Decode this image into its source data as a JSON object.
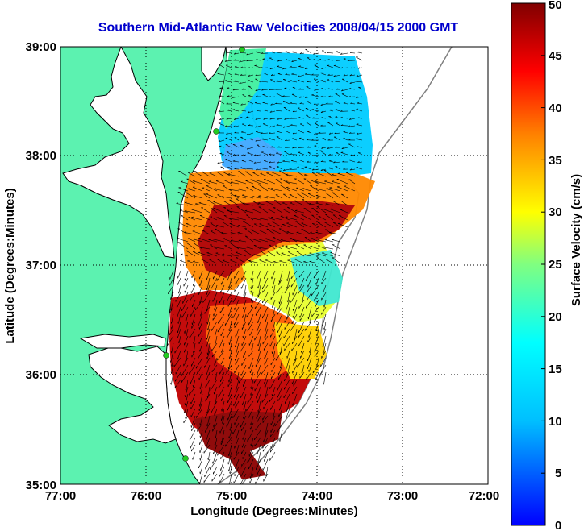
{
  "title": "Southern Mid-Atlantic Raw Velocities 2008/04/15 2000 GMT",
  "x_axis": {
    "label": "Longitude (Degrees:Minutes)",
    "ticks": [
      "77:00",
      "76:00",
      "75:00",
      "74:00",
      "73:00",
      "72:00"
    ]
  },
  "y_axis": {
    "label": "Latitude (Degrees:Minutes)",
    "ticks": [
      "39:00",
      "38:00",
      "37:00",
      "36:00",
      "35:00"
    ]
  },
  "colorbar": {
    "label": "Surface Velocity (cm/s)",
    "ticks": [
      "50",
      "45",
      "40",
      "35",
      "30",
      "25",
      "20",
      "15",
      "10",
      "5",
      "0"
    ],
    "range": [
      0,
      50
    ],
    "colormap": "jet"
  },
  "map": {
    "extent_lon": [
      -77,
      -72
    ],
    "extent_lat": [
      35,
      39
    ],
    "grid": true,
    "land_color": "#5cf2b0",
    "water_color": "#ffffff",
    "coast_color": "#000000",
    "bathymetry_color": "#808080",
    "station_color": "#22cc22"
  },
  "stations": [
    {
      "lon": -74.85,
      "lat": 38.98
    },
    {
      "lon": -75.17,
      "lat": 38.22
    },
    {
      "lon": -75.55,
      "lat": 36.18
    },
    {
      "lon": -75.53,
      "lat": 35.23
    }
  ]
}
